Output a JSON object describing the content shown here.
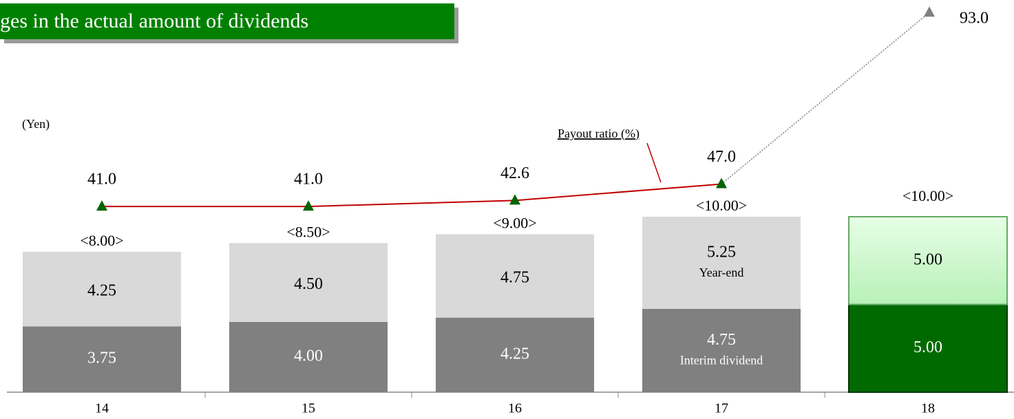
{
  "chart_data": {
    "type": "bar",
    "title": "ges in the actual amount of dividends",
    "unit_label": "(Yen)",
    "categories": [
      "14",
      "15",
      "16",
      "17",
      "18"
    ],
    "series": [
      {
        "name": "Interim dividend",
        "values": [
          3.75,
          4.0,
          4.25,
          4.75,
          5.0
        ],
        "value_labels": [
          "3.75",
          "4.00",
          "4.25",
          "4.75",
          "5.00"
        ],
        "colors": [
          "#808080",
          "#808080",
          "#808080",
          "#808080",
          "#006a00"
        ]
      },
      {
        "name": "Year-end",
        "values": [
          4.25,
          4.5,
          4.75,
          5.25,
          5.0
        ],
        "value_labels": [
          "4.25",
          "4.50",
          "4.75",
          "5.25",
          "5.00"
        ],
        "colors": [
          "#d9d9d9",
          "#d9d9d9",
          "#d9d9d9",
          "#d9d9d9",
          "#ccffcc"
        ]
      },
      {
        "name": "Payout ratio (%)",
        "type": "line",
        "axis": "y2",
        "color": "#c00000",
        "marker_color": "#006400",
        "forecast_color": "#808080",
        "values": [
          41.0,
          41.0,
          42.6,
          47.0,
          93.0
        ],
        "value_labels": [
          "41.0",
          "41.0",
          "42.6",
          "47.0",
          "93.0"
        ]
      }
    ],
    "total_labels": [
      "<8.00>",
      "<8.50>",
      "<9.00>",
      "<10.00>",
      "<10.00>"
    ],
    "ylim": [
      0,
      22
    ],
    "y2lim": [
      -8.8,
      94.7
    ]
  }
}
